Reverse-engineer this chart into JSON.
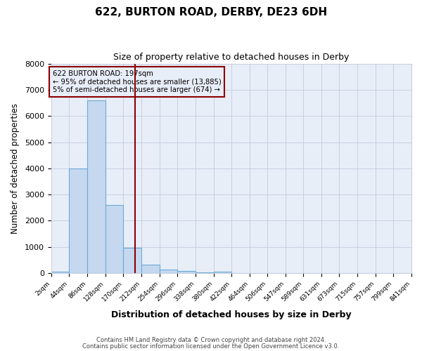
{
  "title": "622, BURTON ROAD, DERBY, DE23 6DH",
  "subtitle": "Size of property relative to detached houses in Derby",
  "xlabel": "Distribution of detached houses by size in Derby",
  "ylabel": "Number of detached properties",
  "footnote1": "Contains HM Land Registry data © Crown copyright and database right 2024.",
  "footnote2": "Contains public sector information licensed under the Open Government Licence v3.0.",
  "bar_edges": [
    2,
    44,
    86,
    128,
    170,
    212,
    254,
    296,
    338,
    380,
    422,
    464,
    506,
    547,
    589,
    631,
    673,
    715,
    757,
    799,
    841
  ],
  "bar_heights": [
    50,
    4000,
    6600,
    2600,
    980,
    330,
    130,
    80,
    20,
    55,
    0,
    0,
    0,
    0,
    0,
    0,
    0,
    0,
    0,
    0
  ],
  "bar_color": "#c5d8f0",
  "bar_edge_color": "#6aaad4",
  "plot_bg_color": "#e8eef8",
  "fig_bg_color": "#ffffff",
  "grid_color": "#c8d0e0",
  "vline_x": 197,
  "vline_color": "#8b0000",
  "annotation_box_color": "#8b0000",
  "annotation_line1": "622 BURTON ROAD: 197sqm",
  "annotation_line2": "← 95% of detached houses are smaller (13,885)",
  "annotation_line3": "5% of semi-detached houses are larger (674) →",
  "ylim": [
    0,
    8000
  ],
  "yticks": [
    0,
    1000,
    2000,
    3000,
    4000,
    5000,
    6000,
    7000,
    8000
  ],
  "tick_labels": [
    "2sqm",
    "44sqm",
    "86sqm",
    "128sqm",
    "170sqm",
    "212sqm",
    "254sqm",
    "296sqm",
    "338sqm",
    "380sqm",
    "422sqm",
    "464sqm",
    "506sqm",
    "547sqm",
    "589sqm",
    "631sqm",
    "673sqm",
    "715sqm",
    "757sqm",
    "799sqm",
    "841sqm"
  ]
}
